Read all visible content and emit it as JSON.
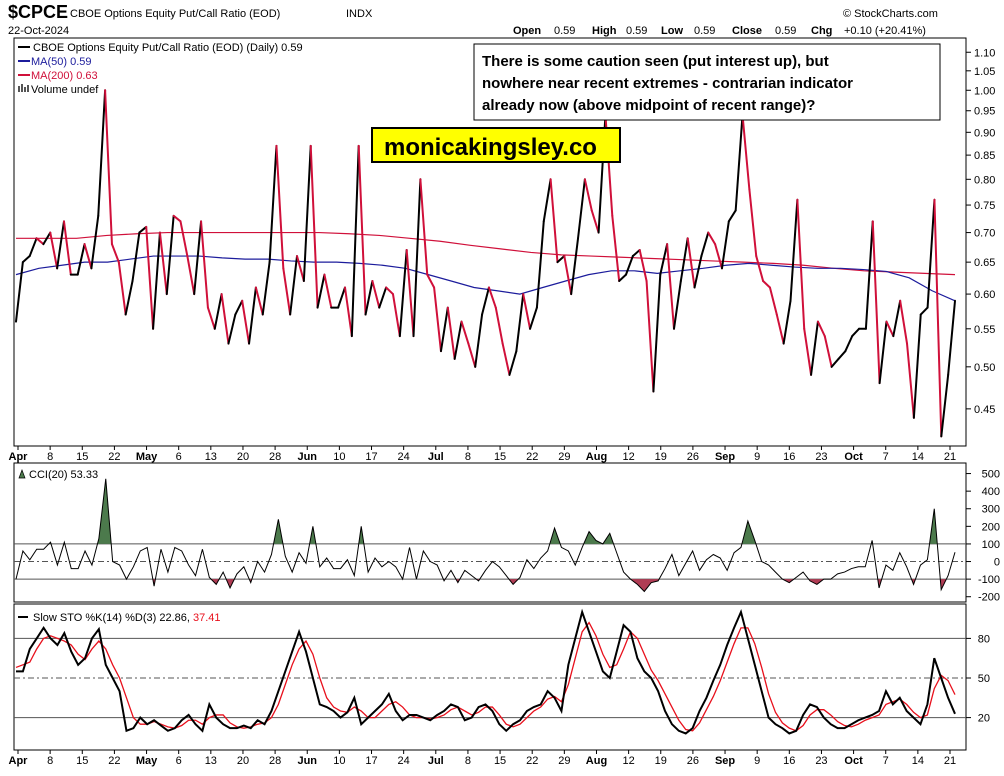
{
  "header": {
    "symbol": "$CPCE",
    "name": "CBOE Options Equity Put/Call Ratio (EOD)",
    "exchange": "INDX",
    "date": "22-Oct-2024",
    "watermark": "© StockCharts.com",
    "open_label": "Open",
    "open": "0.59",
    "high_label": "High",
    "high": "0.59",
    "low_label": "Low",
    "low": "0.59",
    "close_label": "Close",
    "close": "0.59",
    "chg_label": "Chg",
    "chg": "+0.10 (+20.41%)"
  },
  "legend": {
    "main": "CBOE Options Equity Put/Call Ratio (EOD) (Daily) 0.59",
    "ma50": "MA(50) 0.59",
    "ma200": "MA(200) 0.63",
    "volume": "Volume undef"
  },
  "annotation": "There is some caution seen (put interest up), but nowhere near recent extremes - contrarian indicator already now (above midpoint of recent range)?",
  "annotation_lines": [
    "There is some caution seen (put interest up), but",
    "nowhere near recent extremes - contrarian indicator",
    "already now (above midpoint of recent range)?"
  ],
  "watermark_box": "monicakingsley.co",
  "cci_label": "CCI(20) 53.33",
  "sto_label_main": "Slow STO %K(14) %D(3) 22.86,",
  "sto_label_red": "37.41",
  "colors": {
    "price": "#000000",
    "ma50": "#1c1c9c",
    "ma200": "#d0103a",
    "down_segment": "#d0103a",
    "cci_fill": "#4c7a4c",
    "cci_neg_fill": "#b03c54",
    "sto_d": "#e8101c",
    "annotation_bg": "#ffff00"
  },
  "chart_data": [
    {
      "type": "line",
      "panel": "price",
      "scale": "log",
      "ylim": [
        0.41,
        1.14
      ],
      "y_ticks": [
        "1.10",
        "1.05",
        "1.00",
        "0.95",
        "0.90",
        "0.85",
        "0.80",
        "0.75",
        "0.70",
        "0.65",
        "0.60",
        "0.55",
        "0.50",
        "0.45"
      ],
      "x_labels": [
        "Apr",
        "8",
        "15",
        "22",
        "May",
        "6",
        "13",
        "20",
        "28",
        "Jun",
        "10",
        "17",
        "24",
        "Jul",
        "8",
        "15",
        "22",
        "29",
        "Aug",
        "12",
        "19",
        "26",
        "Sep",
        "9",
        "16",
        "23",
        "Oct",
        "7",
        "14",
        "21"
      ],
      "x_labels_bold": [
        "Apr",
        "May",
        "Jun",
        "Jul",
        "Aug",
        "Sep",
        "Oct"
      ],
      "x_start": "2024-04-01",
      "series": [
        {
          "name": "CBOE Options Equity Put/Call Ratio (EOD)",
          "values": [
            0.56,
            0.65,
            0.66,
            0.69,
            0.68,
            0.7,
            0.64,
            0.72,
            0.63,
            0.63,
            0.68,
            0.64,
            0.73,
            1.0,
            0.68,
            0.65,
            0.57,
            0.62,
            0.7,
            0.71,
            0.55,
            0.7,
            0.6,
            0.73,
            0.72,
            0.66,
            0.6,
            0.72,
            0.58,
            0.55,
            0.6,
            0.53,
            0.57,
            0.59,
            0.53,
            0.61,
            0.57,
            0.65,
            0.87,
            0.64,
            0.57,
            0.66,
            0.62,
            0.87,
            0.58,
            0.63,
            0.58,
            0.58,
            0.61,
            0.54,
            0.87,
            0.57,
            0.62,
            0.58,
            0.61,
            0.6,
            0.54,
            0.67,
            0.54,
            0.8,
            0.63,
            0.61,
            0.52,
            0.58,
            0.51,
            0.56,
            0.53,
            0.5,
            0.57,
            0.61,
            0.58,
            0.53,
            0.49,
            0.52,
            0.6,
            0.55,
            0.58,
            0.72,
            0.8,
            0.65,
            0.66,
            0.6,
            0.69,
            0.8,
            0.74,
            0.7,
            0.94,
            0.73,
            0.62,
            0.63,
            0.66,
            0.67,
            0.62,
            0.47,
            0.63,
            0.68,
            0.55,
            0.62,
            0.69,
            0.61,
            0.66,
            0.7,
            0.68,
            0.64,
            0.72,
            0.74,
            0.94,
            0.78,
            0.66,
            0.62,
            0.61,
            0.57,
            0.53,
            0.59,
            0.76,
            0.55,
            0.49,
            0.56,
            0.54,
            0.5,
            0.51,
            0.52,
            0.54,
            0.55,
            0.55,
            0.72,
            0.48,
            0.56,
            0.54,
            0.59,
            0.53,
            0.44,
            0.57,
            0.58,
            0.76,
            0.42,
            0.49,
            0.59
          ]
        },
        {
          "name": "MA(50)",
          "values": [
            0.63,
            0.64,
            0.645,
            0.65,
            0.65,
            0.655,
            0.66,
            0.66,
            0.66,
            0.657,
            0.655,
            0.655,
            0.652,
            0.65,
            0.65,
            0.648,
            0.645,
            0.64,
            0.63,
            0.62,
            0.61,
            0.605,
            0.6,
            0.61,
            0.62,
            0.63,
            0.636,
            0.636,
            0.632,
            0.636,
            0.64,
            0.645,
            0.648,
            0.645,
            0.642,
            0.64,
            0.64,
            0.638,
            0.635,
            0.625,
            0.605,
            0.59
          ]
        },
        {
          "name": "MA(200)",
          "values": [
            0.69,
            0.69,
            0.69,
            0.695,
            0.698,
            0.7,
            0.7,
            0.7,
            0.7,
            0.7,
            0.7,
            0.698,
            0.695,
            0.69,
            0.685,
            0.678,
            0.672,
            0.666,
            0.662,
            0.66,
            0.658,
            0.656,
            0.654,
            0.652,
            0.65,
            0.648,
            0.645,
            0.64,
            0.636,
            0.634,
            0.632,
            0.63
          ]
        }
      ]
    },
    {
      "type": "area",
      "panel": "CCI(20)",
      "ylim": [
        -230,
        560
      ],
      "y_ticks": [
        500,
        400,
        300,
        200,
        100,
        0,
        -100,
        -200
      ],
      "ref_lines": [
        100,
        0,
        -100
      ],
      "series": [
        {
          "name": "CCI(20)",
          "values": [
            -100,
            60,
            10,
            70,
            70,
            110,
            -20,
            110,
            -40,
            -40,
            60,
            -20,
            130,
            470,
            0,
            -20,
            -100,
            -30,
            60,
            80,
            -140,
            70,
            -60,
            80,
            60,
            -20,
            -80,
            70,
            -90,
            -130,
            -60,
            -150,
            -70,
            -30,
            -120,
            0,
            -60,
            40,
            240,
            30,
            -60,
            50,
            -10,
            200,
            -30,
            20,
            -40,
            -40,
            10,
            -80,
            200,
            -60,
            20,
            -30,
            0,
            -30,
            -100,
            80,
            -100,
            60,
            0,
            -20,
            -110,
            -50,
            -120,
            -50,
            -80,
            -110,
            -50,
            0,
            -30,
            -80,
            -130,
            -90,
            10,
            -40,
            20,
            60,
            190,
            80,
            60,
            -20,
            80,
            170,
            120,
            100,
            160,
            50,
            -60,
            -100,
            -130,
            -170,
            -120,
            -110,
            -40,
            40,
            -80,
            -10,
            60,
            -50,
            10,
            40,
            20,
            -50,
            50,
            80,
            230,
            120,
            0,
            -20,
            -60,
            -100,
            -120,
            -90,
            -60,
            -110,
            -130,
            -100,
            -100,
            -70,
            -60,
            -40,
            -30,
            -30,
            120,
            -150,
            -20,
            -50,
            50,
            -30,
            -130,
            -20,
            10,
            300,
            -160,
            -80,
            53
          ]
        }
      ]
    },
    {
      "type": "line",
      "panel": "Slow STO %K(14) %D(3)",
      "ylim": [
        0,
        100
      ],
      "y_ticks": [
        80,
        50,
        20
      ],
      "ref_lines": [
        80,
        50,
        20
      ],
      "series": [
        {
          "name": "%K",
          "values": [
            55,
            55,
            72,
            80,
            88,
            80,
            75,
            84,
            70,
            60,
            65,
            80,
            87,
            60,
            50,
            40,
            10,
            12,
            20,
            15,
            18,
            14,
            10,
            12,
            18,
            22,
            15,
            10,
            30,
            20,
            15,
            12,
            12,
            14,
            12,
            18,
            15,
            25,
            40,
            55,
            70,
            85,
            70,
            50,
            30,
            28,
            25,
            20,
            24,
            35,
            15,
            20,
            25,
            30,
            38,
            25,
            18,
            22,
            22,
            20,
            18,
            22,
            25,
            30,
            28,
            18,
            20,
            28,
            30,
            25,
            15,
            10,
            15,
            18,
            25,
            28,
            30,
            40,
            35,
            25,
            60,
            80,
            100,
            85,
            70,
            55,
            50,
            70,
            90,
            85,
            65,
            55,
            50,
            40,
            25,
            15,
            10,
            8,
            12,
            25,
            35,
            48,
            60,
            75,
            88,
            100,
            80,
            60,
            40,
            20,
            15,
            12,
            8,
            10,
            22,
            30,
            28,
            20,
            15,
            12,
            12,
            15,
            18,
            20,
            22,
            25,
            40,
            30,
            35,
            25,
            20,
            15,
            30,
            65,
            50,
            35,
            22.86
          ]
        },
        {
          "name": "%D",
          "values": [
            58,
            60,
            62,
            72,
            80,
            82,
            80,
            78,
            75,
            68,
            64,
            72,
            78,
            72,
            60,
            50,
            35,
            20,
            15,
            15,
            17,
            15,
            13,
            12,
            14,
            18,
            18,
            15,
            20,
            22,
            22,
            16,
            13,
            12,
            13,
            15,
            16,
            20,
            30,
            45,
            60,
            72,
            78,
            68,
            50,
            35,
            28,
            25,
            24,
            28,
            25,
            20,
            20,
            25,
            30,
            32,
            28,
            22,
            20,
            20,
            19,
            20,
            22,
            26,
            28,
            25,
            22,
            24,
            28,
            28,
            22,
            15,
            13,
            15,
            20,
            25,
            28,
            34,
            36,
            32,
            45,
            65,
            85,
            92,
            82,
            68,
            58,
            60,
            72,
            85,
            80,
            68,
            56,
            48,
            38,
            28,
            18,
            11,
            10,
            16,
            26,
            36,
            48,
            62,
            76,
            88,
            88,
            76,
            58,
            38,
            24,
            16,
            12,
            10,
            14,
            22,
            26,
            26,
            22,
            17,
            14,
            13,
            15,
            18,
            20,
            22,
            30,
            32,
            34,
            30,
            24,
            20,
            22,
            42,
            52,
            48,
            37.41
          ]
        }
      ]
    }
  ]
}
